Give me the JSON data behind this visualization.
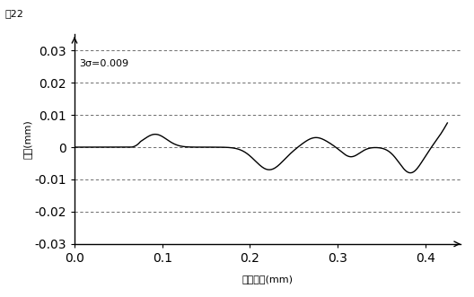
{
  "title": "囲22",
  "xlabel": "走査位置(mm)",
  "ylabel": "変位(mm)",
  "annotation": "3σ=0.009",
  "xlim": [
    0.0,
    0.44
  ],
  "ylim": [
    -0.03,
    0.035
  ],
  "yticks": [
    -0.03,
    -0.02,
    -0.01,
    0.0,
    0.01,
    0.02,
    0.03
  ],
  "ytick_labels": [
    "-0.03",
    "-0.02",
    "-0.01",
    "0",
    "0.01",
    "0.02",
    "0.03"
  ],
  "xticks": [
    0.0,
    0.1,
    0.2,
    0.3,
    0.4
  ],
  "xtick_labels": [
    "0.0",
    "0.1",
    "0.2",
    "0.3",
    "0.4"
  ],
  "line_color": "#000000",
  "grid_color": "#555555",
  "background_color": "#ffffff",
  "figsize": [
    5.28,
    3.31
  ],
  "dpi": 100
}
